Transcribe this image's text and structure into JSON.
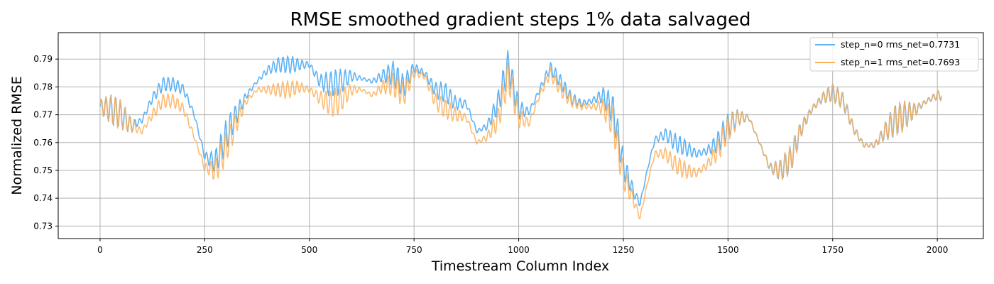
{
  "chart_data": {
    "type": "line",
    "title": "RMSE smoothed gradient steps 1% data salvaged",
    "xlabel": "Timestream Column Index",
    "ylabel": "Normalized RMSE",
    "xlim": [
      -100,
      2110
    ],
    "ylim": [
      0.7255,
      0.7995
    ],
    "xticks": [
      0,
      250,
      500,
      750,
      1000,
      1250,
      1500,
      1750,
      2000
    ],
    "yticks": [
      0.73,
      0.74,
      0.75,
      0.76,
      0.77,
      0.78,
      0.79
    ],
    "grid": true,
    "legend_position": "top-right",
    "series": [
      {
        "name": "step_n=0 rms_net=0.7731",
        "color": "#5fb3f4",
        "x": [
          0,
          25,
          50,
          75,
          100,
          125,
          150,
          175,
          200,
          225,
          250,
          275,
          300,
          325,
          350,
          375,
          400,
          425,
          450,
          475,
          500,
          525,
          550,
          575,
          600,
          625,
          650,
          675,
          700,
          725,
          750,
          775,
          800,
          825,
          850,
          875,
          900,
          925,
          950,
          975,
          1000,
          1025,
          1050,
          1075,
          1100,
          1125,
          1150,
          1175,
          1200,
          1225,
          1250,
          1275,
          1290,
          1310,
          1325,
          1350,
          1375,
          1400,
          1425,
          1450,
          1475,
          1500,
          1525,
          1550,
          1575,
          1600,
          1625,
          1650,
          1675,
          1700,
          1725,
          1750,
          1775,
          1800,
          1825,
          1850,
          1875,
          1900,
          1925,
          1950,
          1975,
          2000,
          2010
        ],
        "y": [
          0.773,
          0.772,
          0.77,
          0.766,
          0.768,
          0.776,
          0.781,
          0.781,
          0.779,
          0.77,
          0.755,
          0.753,
          0.762,
          0.77,
          0.777,
          0.782,
          0.786,
          0.788,
          0.788,
          0.788,
          0.788,
          0.782,
          0.781,
          0.782,
          0.784,
          0.783,
          0.782,
          0.784,
          0.785,
          0.78,
          0.787,
          0.785,
          0.779,
          0.778,
          0.774,
          0.774,
          0.764,
          0.766,
          0.774,
          0.788,
          0.772,
          0.771,
          0.779,
          0.787,
          0.782,
          0.776,
          0.774,
          0.775,
          0.777,
          0.772,
          0.752,
          0.742,
          0.738,
          0.752,
          0.761,
          0.763,
          0.76,
          0.758,
          0.756,
          0.757,
          0.76,
          0.766,
          0.769,
          0.769,
          0.76,
          0.751,
          0.75,
          0.754,
          0.765,
          0.772,
          0.776,
          0.778,
          0.775,
          0.765,
          0.759,
          0.759,
          0.764,
          0.768,
          0.77,
          0.772,
          0.775,
          0.777,
          0.777
        ]
      },
      {
        "name": "step_n=1 rms_net=0.7693",
        "color": "#fdb05a",
        "x": [
          0,
          25,
          50,
          75,
          100,
          125,
          150,
          175,
          200,
          225,
          250,
          275,
          300,
          325,
          350,
          375,
          400,
          425,
          450,
          475,
          500,
          525,
          550,
          575,
          600,
          625,
          650,
          675,
          700,
          725,
          750,
          775,
          800,
          825,
          850,
          875,
          900,
          925,
          950,
          975,
          1000,
          1025,
          1050,
          1075,
          1100,
          1125,
          1150,
          1175,
          1200,
          1225,
          1250,
          1275,
          1290,
          1310,
          1325,
          1350,
          1375,
          1400,
          1425,
          1450,
          1475,
          1500,
          1525,
          1550,
          1575,
          1600,
          1625,
          1650,
          1675,
          1700,
          1725,
          1750,
          1775,
          1800,
          1825,
          1850,
          1875,
          1900,
          1925,
          1950,
          1975,
          2000,
          2010
        ],
        "y": [
          0.773,
          0.772,
          0.77,
          0.766,
          0.764,
          0.77,
          0.775,
          0.775,
          0.772,
          0.762,
          0.751,
          0.75,
          0.758,
          0.767,
          0.775,
          0.779,
          0.779,
          0.779,
          0.779,
          0.78,
          0.779,
          0.776,
          0.774,
          0.775,
          0.779,
          0.779,
          0.777,
          0.78,
          0.781,
          0.777,
          0.785,
          0.784,
          0.775,
          0.772,
          0.77,
          0.769,
          0.76,
          0.762,
          0.768,
          0.784,
          0.769,
          0.767,
          0.777,
          0.785,
          0.779,
          0.775,
          0.773,
          0.773,
          0.773,
          0.767,
          0.748,
          0.739,
          0.733,
          0.747,
          0.756,
          0.756,
          0.752,
          0.75,
          0.749,
          0.752,
          0.757,
          0.765,
          0.769,
          0.769,
          0.76,
          0.751,
          0.75,
          0.754,
          0.765,
          0.772,
          0.776,
          0.778,
          0.775,
          0.765,
          0.759,
          0.759,
          0.764,
          0.768,
          0.77,
          0.772,
          0.775,
          0.777,
          0.777
        ]
      }
    ]
  }
}
